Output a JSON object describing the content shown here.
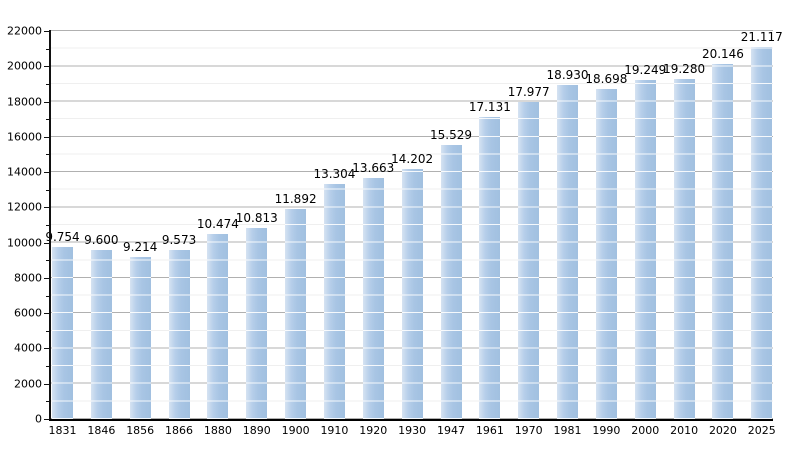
{
  "chart_data": {
    "type": "bar",
    "title": "",
    "xlabel": "",
    "ylabel": "",
    "categories": [
      "1831",
      "1846",
      "1856",
      "1866",
      "1880",
      "1890",
      "1900",
      "1910",
      "1920",
      "1930",
      "1947",
      "1961",
      "1970",
      "1981",
      "1990",
      "2000",
      "2010",
      "2020",
      "2025"
    ],
    "values": [
      9754,
      9600,
      9214,
      9573,
      10474,
      10813,
      11892,
      13304,
      13663,
      14202,
      15529,
      17131,
      17977,
      18930,
      18698,
      19249,
      19280,
      20146,
      21117
    ],
    "value_labels": [
      "9.754",
      "9.600",
      "9.214",
      "9.573",
      "10.474",
      "10.813",
      "11.892",
      "13.304",
      "13.663",
      "14.202",
      "15.529",
      "17.131",
      "17.977",
      "18.930",
      "18.698",
      "19.249",
      "19.280",
      "20.146",
      "21.117"
    ],
    "ylim": [
      0,
      22000
    ],
    "ytick_step": 2000,
    "ytick_labels": [
      "0",
      "2000",
      "4000",
      "6000",
      "8000",
      "10000",
      "12000",
      "14000",
      "16000",
      "18000",
      "20000",
      "22000"
    ],
    "minor_step": 1000,
    "grid": "horizontal, major and minor, on",
    "legend": "none",
    "colors": {
      "bar_fill": "#a8c5e4",
      "bar_highlight": "#d6e3f2",
      "bar_line_overlay": "#ffffff",
      "major_gridline": "#b0b0b0",
      "minor_gridline": "#efefef",
      "axis": "#000000",
      "text": "#000000",
      "background": "#ffffff"
    }
  }
}
